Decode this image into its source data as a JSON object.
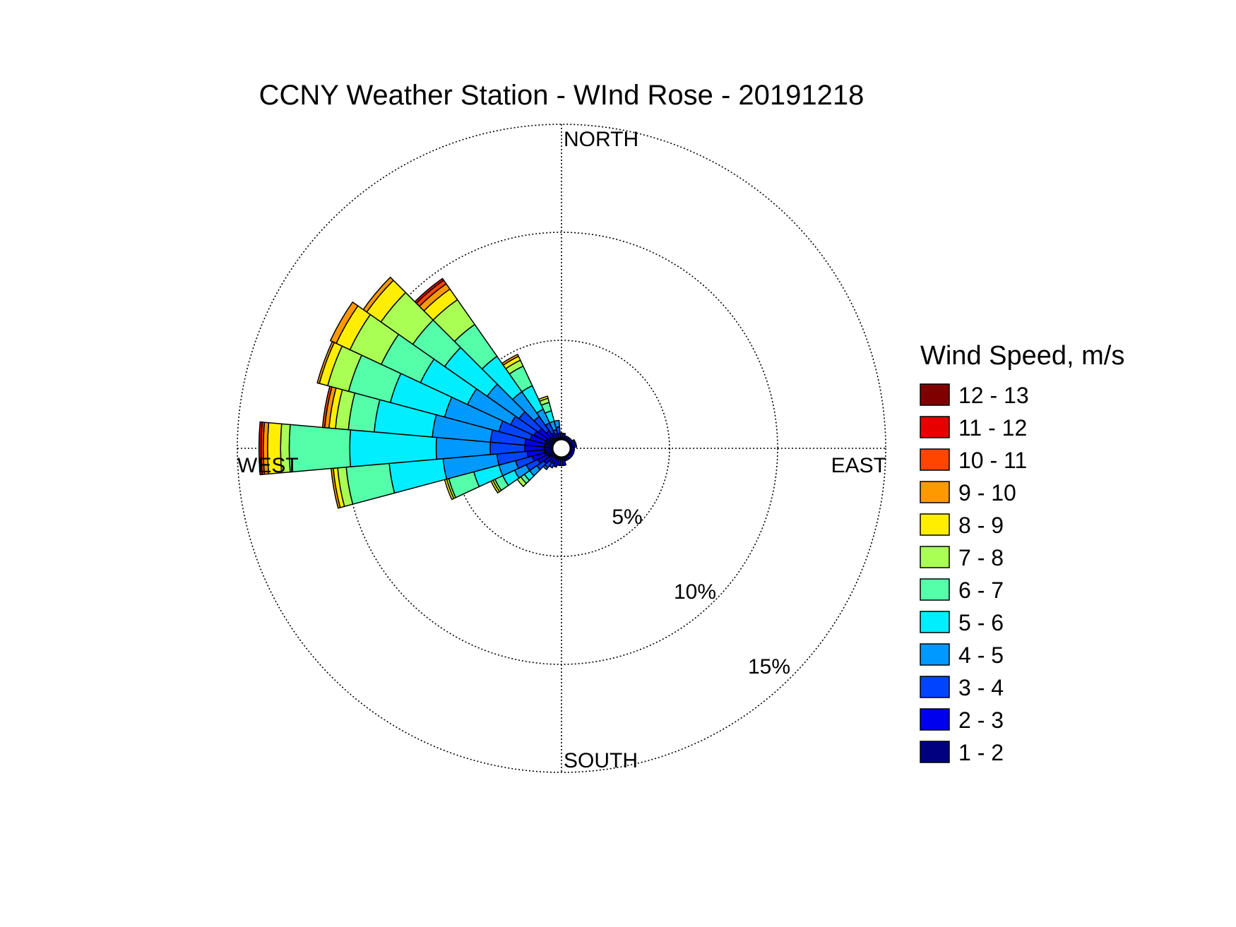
{
  "chart_data": {
    "type": "polar-bar",
    "title": "CCNY Weather Station - WInd Rose - 20191218",
    "directions": {
      "north": "NORTH",
      "south": "SOUTH",
      "east": "EAST",
      "west": "WEST"
    },
    "radial_ticks": [
      {
        "value": 5,
        "label": "5%"
      },
      {
        "value": 10,
        "label": "10%"
      },
      {
        "value": 15,
        "label": "15%"
      }
    ],
    "rlim": [
      0,
      15
    ],
    "grid": true,
    "legend": {
      "title": "Wind Speed, m/s",
      "placement": "right",
      "bins": [
        {
          "label": "12 - 13",
          "color": "#800000"
        },
        {
          "label": "11 - 12",
          "color": "#e60000"
        },
        {
          "label": "10 - 11",
          "color": "#ff4500"
        },
        {
          "label": "9 - 10",
          "color": "#ff9900"
        },
        {
          "label": "8 - 9",
          "color": "#ffee00"
        },
        {
          "label": "7 - 8",
          "color": "#aaff55"
        },
        {
          "label": "6 - 7",
          "color": "#55ffaa"
        },
        {
          "label": "5 - 6",
          "color": "#00eeff"
        },
        {
          "label": "4 - 5",
          "color": "#0099ff"
        },
        {
          "label": "3 - 4",
          "color": "#0044ff"
        },
        {
          "label": "2 - 3",
          "color": "#0000ee"
        },
        {
          "label": "1 - 2",
          "color": "#000080"
        }
      ]
    },
    "speed_bins_ascending": [
      "1 - 2",
      "2 - 3",
      "3 - 4",
      "4 - 5",
      "5 - 6",
      "6 - 7",
      "7 - 8",
      "8 - 9",
      "9 - 10",
      "10 - 11",
      "11 - 12",
      "12 - 13"
    ],
    "sectors": [
      {
        "direction_deg": 0,
        "cumulative_percent": [
          0.5,
          0.7
        ]
      },
      {
        "direction_deg": 10,
        "cumulative_percent": [
          0.5,
          0.7
        ]
      },
      {
        "direction_deg": 20,
        "cumulative_percent": [
          0.4,
          0.6
        ]
      },
      {
        "direction_deg": 30,
        "cumulative_percent": [
          0.4,
          0.6
        ]
      },
      {
        "direction_deg": 40,
        "cumulative_percent": [
          0.4,
          0.6
        ]
      },
      {
        "direction_deg": 50,
        "cumulative_percent": [
          0.4,
          0.6
        ]
      },
      {
        "direction_deg": 60,
        "cumulative_percent": [
          0.5,
          0.7
        ]
      },
      {
        "direction_deg": 70,
        "cumulative_percent": [
          0.5,
          0.7
        ]
      },
      {
        "direction_deg": 80,
        "cumulative_percent": [
          0.5,
          0.7
        ]
      },
      {
        "direction_deg": 90,
        "cumulative_percent": [
          0.4,
          0.6
        ]
      },
      {
        "direction_deg": 100,
        "cumulative_percent": [
          0.4,
          0.6
        ]
      },
      {
        "direction_deg": 110,
        "cumulative_percent": [
          0.4,
          0.6
        ]
      },
      {
        "direction_deg": 120,
        "cumulative_percent": [
          0.4,
          0.6
        ]
      },
      {
        "direction_deg": 130,
        "cumulative_percent": [
          0.4,
          0.6
        ]
      },
      {
        "direction_deg": 140,
        "cumulative_percent": [
          0.4,
          0.6
        ]
      },
      {
        "direction_deg": 150,
        "cumulative_percent": [
          0.4,
          0.6
        ]
      },
      {
        "direction_deg": 160,
        "cumulative_percent": [
          0.4,
          0.6
        ]
      },
      {
        "direction_deg": 170,
        "cumulative_percent": [
          0.5,
          0.8
        ]
      },
      {
        "direction_deg": 180,
        "cumulative_percent": [
          0.5,
          0.8
        ]
      },
      {
        "direction_deg": 190,
        "cumulative_percent": [
          0.5,
          0.8
        ]
      },
      {
        "direction_deg": 200,
        "cumulative_percent": [
          0.5,
          0.9
        ]
      },
      {
        "direction_deg": 210,
        "cumulative_percent": [
          0.5,
          0.8,
          1.0
        ]
      },
      {
        "direction_deg": 220,
        "cumulative_percent": [
          0.5,
          0.8,
          1.1,
          1.2
        ]
      },
      {
        "direction_deg": 230,
        "cumulative_percent": [
          0.6,
          1.0,
          1.4,
          1.8,
          2.1,
          2.3,
          2.5
        ]
      },
      {
        "direction_deg": 240,
        "cumulative_percent": [
          0.7,
          1.2,
          1.8,
          2.4,
          3.0,
          3.4,
          3.5,
          3.6
        ]
      },
      {
        "direction_deg": 250,
        "cumulative_percent": [
          0.8,
          1.4,
          2.2,
          3.0,
          4.2,
          5.4,
          5.5,
          5.6
        ]
      },
      {
        "direction_deg": 260,
        "cumulative_percent": [
          0.8,
          1.6,
          3.0,
          5.5,
          8.0,
          10.0,
          10.4,
          10.6,
          10.7
        ]
      },
      {
        "direction_deg": 270,
        "cumulative_percent": [
          0.8,
          1.7,
          3.3,
          5.8,
          9.8,
          12.6,
          13.0,
          13.6,
          13.8,
          13.9,
          14.0
        ]
      },
      {
        "direction_deg": 280,
        "cumulative_percent": [
          0.8,
          1.7,
          3.3,
          6.0,
          8.7,
          9.9,
          10.5,
          10.8,
          11.0,
          11.1
        ]
      },
      {
        "direction_deg": 290,
        "cumulative_percent": [
          0.8,
          1.5,
          3.0,
          5.6,
          8.2,
          10.2,
          11.2,
          11.6,
          11.7
        ]
      },
      {
        "direction_deg": 300,
        "cumulative_percent": [
          0.8,
          1.4,
          2.6,
          4.8,
          7.2,
          9.2,
          10.8,
          11.5,
          11.8
        ]
      },
      {
        "direction_deg": 310,
        "cumulative_percent": [
          0.7,
          1.3,
          2.4,
          4.2,
          6.6,
          8.4,
          10.2,
          11.0,
          11.2
        ]
      },
      {
        "direction_deg": 320,
        "cumulative_percent": [
          0.6,
          1.0,
          1.8,
          3.2,
          5.2,
          7.0,
          8.4,
          9.0,
          9.3,
          9.5,
          9.6
        ]
      },
      {
        "direction_deg": 330,
        "cumulative_percent": [
          0.5,
          0.8,
          1.3,
          2.0,
          3.2,
          4.2,
          4.5,
          4.7,
          4.8
        ]
      },
      {
        "direction_deg": 340,
        "cumulative_percent": [
          0.5,
          0.7,
          0.9,
          1.3,
          1.8,
          2.2,
          2.4,
          2.5
        ]
      },
      {
        "direction_deg": 350,
        "cumulative_percent": [
          0.5,
          0.7,
          1.0,
          1.3
        ]
      }
    ]
  }
}
